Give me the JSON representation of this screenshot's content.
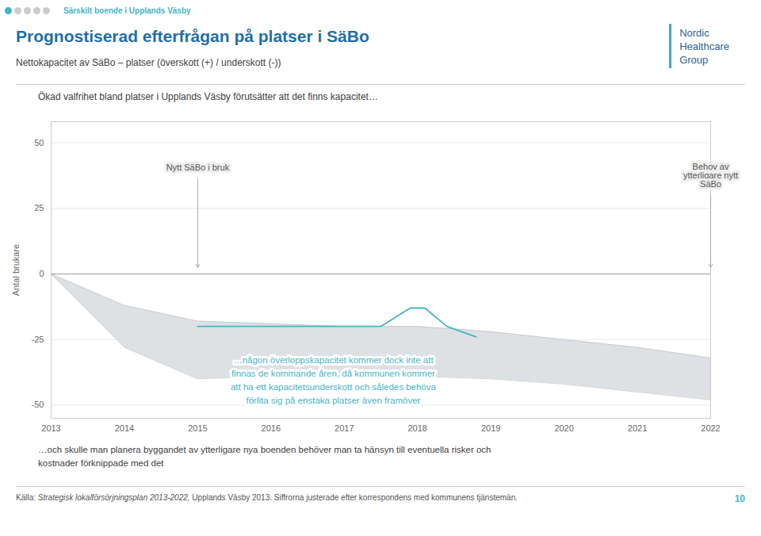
{
  "chart_data": {
    "type": "line",
    "header": "Särskilt boende i Upplands Väsby",
    "title": "Prognostiserad efterfrågan på platser i SäBo",
    "subtitle": "Nettokapacitet av SäBo – platser (överskott (+) / underskott (-))",
    "logo_text": [
      "Nordic",
      "Healthcare",
      "Group"
    ],
    "intro": "Ökad valfrihet bland platser i Upplands Väsby förutsätter att det finns kapacitet…",
    "ylabel": "Antal brukare",
    "x": [
      2013,
      2014,
      2015,
      2016,
      2017,
      2018,
      2019,
      2020,
      2021,
      2022
    ],
    "xlim": [
      2013,
      2022
    ],
    "xticks": [
      2013,
      2014,
      2015,
      2016,
      2017,
      2018,
      2019,
      2020,
      2021,
      2022
    ],
    "ylim": [
      -55,
      58
    ],
    "yticks": [
      -50,
      -25,
      0,
      25,
      50
    ],
    "grid": true,
    "series": [
      {
        "type": "area",
        "color": "#dde1e4",
        "upper": [
          0,
          -12,
          -18,
          -19,
          -20,
          -20,
          -22,
          -25,
          -28,
          -32
        ],
        "lower": [
          0,
          -28,
          -40,
          -39,
          -39,
          -39,
          -40,
          -42,
          -45,
          -48
        ]
      },
      {
        "type": "line",
        "color": "#45b5c8",
        "x": [
          2015.0,
          2016.5,
          2017.5,
          2017.9,
          2018.1,
          2018.4,
          2018.8
        ],
        "values": [
          -20,
          -20,
          -20,
          -13,
          -13,
          -20,
          -24
        ]
      }
    ],
    "annotations": [
      {
        "text": "Nytt SäBo i bruk",
        "x": 2015,
        "y": 40.5,
        "arrow_y": 2.5
      },
      {
        "text": "Behov av\nytterligare nytt\nSäBo",
        "x": 2022,
        "y": 37.5,
        "arrow_y": 2.5
      }
    ],
    "callout": {
      "text": "…någon överloppskapacitet kommer dock inte att\nfinnas de kommande åren, då kommunen kommer\natt ha ett kapacitetsunderskott och således behöva\nförlita sig på enstaka platser även framöver",
      "x": 2016.85,
      "y": -40,
      "color": "#45b5c8"
    },
    "note": "…och skulle man planera byggandet av ytterligare nya boenden behöver man ta hänsyn till eventuella risker och\nkostnader förknippade med det",
    "source_label": "Källa:",
    "source_title": "Strategisk lokalförsörjningsplan 2013-2022,",
    "source_text": "Upplands Väsby 2013. Siffrorna justerade efter korrespondens med kommunens tjänstemän.",
    "page": "10"
  }
}
